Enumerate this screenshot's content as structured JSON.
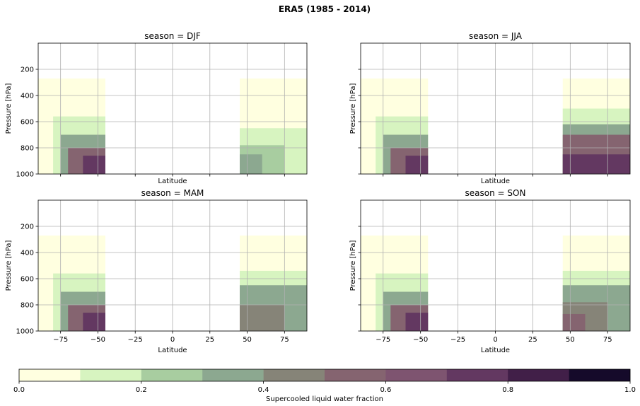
{
  "figure": {
    "suptitle": "ERA5 (1985 - 2014)"
  },
  "colorbar": {
    "label": "Supercooled liquid water fraction",
    "range": [
      0,
      1
    ],
    "ticks": [
      "0.0",
      "0.2",
      "0.4",
      "0.6",
      "0.8",
      "1.0"
    ],
    "levels": [
      0,
      0.1,
      0.2,
      0.3,
      0.4,
      0.5,
      0.6,
      0.7,
      0.8,
      0.9,
      1.0
    ],
    "colors": [
      "#ffffe0",
      "#d7f4c0",
      "#a8cda0",
      "#8ca890",
      "#868478",
      "#856470",
      "#7e5470",
      "#633861",
      "#411f48",
      "#150a2a"
    ]
  },
  "chart_data": [
    {
      "type": "heatmap",
      "title": "season = DJF",
      "xlabel": "Latitude",
      "ylabel": "Pressure [hPa]",
      "xlim": [
        -90,
        90
      ],
      "ylim": [
        1000,
        0
      ],
      "xticks": [
        "-75",
        "-50",
        "-25",
        "0",
        "25",
        "50",
        "75"
      ],
      "yticks": [
        "200",
        "400",
        "600",
        "800",
        "1000"
      ],
      "grid": true,
      "show_xticklabels": false,
      "show_yticklabels": true,
      "regions": [
        {
          "lat": [
            -90,
            -45
          ],
          "pressure": [
            270,
            1000
          ],
          "fraction": 0.05
        },
        {
          "lat": [
            -80,
            -45
          ],
          "pressure": [
            560,
            1000
          ],
          "fraction": 0.15
        },
        {
          "lat": [
            -75,
            -45
          ],
          "pressure": [
            700,
            1000
          ],
          "fraction": 0.35
        },
        {
          "lat": [
            -70,
            -45
          ],
          "pressure": [
            800,
            1000
          ],
          "fraction": 0.55
        },
        {
          "lat": [
            -60,
            -45
          ],
          "pressure": [
            860,
            1000
          ],
          "fraction": 0.75
        },
        {
          "lat": [
            45,
            90
          ],
          "pressure": [
            270,
            1000
          ],
          "fraction": 0.05
        },
        {
          "lat": [
            45,
            90
          ],
          "pressure": [
            650,
            1000
          ],
          "fraction": 0.15
        },
        {
          "lat": [
            45,
            75
          ],
          "pressure": [
            780,
            1000
          ],
          "fraction": 0.25
        },
        {
          "lat": [
            45,
            60
          ],
          "pressure": [
            850,
            1000
          ],
          "fraction": 0.35
        }
      ]
    },
    {
      "type": "heatmap",
      "title": "season = JJA",
      "xlabel": "Latitude",
      "ylabel": "Pressure [hPa]",
      "xlim": [
        -90,
        90
      ],
      "ylim": [
        1000,
        0
      ],
      "xticks": [
        "-75",
        "-50",
        "-25",
        "0",
        "25",
        "50",
        "75"
      ],
      "yticks": [
        "200",
        "400",
        "600",
        "800",
        "1000"
      ],
      "grid": true,
      "show_xticklabels": false,
      "show_yticklabels": false,
      "regions": [
        {
          "lat": [
            -90,
            -45
          ],
          "pressure": [
            270,
            1000
          ],
          "fraction": 0.05
        },
        {
          "lat": [
            -80,
            -45
          ],
          "pressure": [
            560,
            1000
          ],
          "fraction": 0.15
        },
        {
          "lat": [
            -75,
            -45
          ],
          "pressure": [
            700,
            1000
          ],
          "fraction": 0.35
        },
        {
          "lat": [
            -70,
            -45
          ],
          "pressure": [
            800,
            1000
          ],
          "fraction": 0.55
        },
        {
          "lat": [
            -60,
            -45
          ],
          "pressure": [
            860,
            1000
          ],
          "fraction": 0.75
        },
        {
          "lat": [
            45,
            90
          ],
          "pressure": [
            270,
            1000
          ],
          "fraction": 0.05
        },
        {
          "lat": [
            45,
            90
          ],
          "pressure": [
            500,
            1000
          ],
          "fraction": 0.15
        },
        {
          "lat": [
            45,
            90
          ],
          "pressure": [
            620,
            1000
          ],
          "fraction": 0.35
        },
        {
          "lat": [
            45,
            90
          ],
          "pressure": [
            700,
            1000
          ],
          "fraction": 0.55
        },
        {
          "lat": [
            45,
            90
          ],
          "pressure": [
            850,
            1000
          ],
          "fraction": 0.75
        }
      ]
    },
    {
      "type": "heatmap",
      "title": "season = MAM",
      "xlabel": "Latitude",
      "ylabel": "Pressure [hPa]",
      "xlim": [
        -90,
        90
      ],
      "ylim": [
        1000,
        0
      ],
      "xticks": [
        "-75",
        "-50",
        "-25",
        "0",
        "25",
        "50",
        "75"
      ],
      "yticks": [
        "200",
        "400",
        "600",
        "800",
        "1000"
      ],
      "grid": true,
      "show_xticklabels": true,
      "show_yticklabels": true,
      "regions": [
        {
          "lat": [
            -90,
            -45
          ],
          "pressure": [
            270,
            1000
          ],
          "fraction": 0.05
        },
        {
          "lat": [
            -80,
            -45
          ],
          "pressure": [
            560,
            1000
          ],
          "fraction": 0.15
        },
        {
          "lat": [
            -75,
            -45
          ],
          "pressure": [
            700,
            1000
          ],
          "fraction": 0.35
        },
        {
          "lat": [
            -70,
            -45
          ],
          "pressure": [
            800,
            1000
          ],
          "fraction": 0.55
        },
        {
          "lat": [
            -60,
            -45
          ],
          "pressure": [
            860,
            1000
          ],
          "fraction": 0.75
        },
        {
          "lat": [
            45,
            90
          ],
          "pressure": [
            270,
            1000
          ],
          "fraction": 0.05
        },
        {
          "lat": [
            45,
            90
          ],
          "pressure": [
            540,
            1000
          ],
          "fraction": 0.15
        },
        {
          "lat": [
            45,
            90
          ],
          "pressure": [
            650,
            1000
          ],
          "fraction": 0.35
        },
        {
          "lat": [
            45,
            75
          ],
          "pressure": [
            800,
            1000
          ],
          "fraction": 0.45
        }
      ]
    },
    {
      "type": "heatmap",
      "title": "season = SON",
      "xlabel": "Latitude",
      "ylabel": "Pressure [hPa]",
      "xlim": [
        -90,
        90
      ],
      "ylim": [
        1000,
        0
      ],
      "xticks": [
        "-75",
        "-50",
        "-25",
        "0",
        "25",
        "50",
        "75"
      ],
      "yticks": [
        "200",
        "400",
        "600",
        "800",
        "1000"
      ],
      "grid": true,
      "show_xticklabels": true,
      "show_yticklabels": false,
      "regions": [
        {
          "lat": [
            -90,
            -45
          ],
          "pressure": [
            270,
            1000
          ],
          "fraction": 0.05
        },
        {
          "lat": [
            -80,
            -45
          ],
          "pressure": [
            560,
            1000
          ],
          "fraction": 0.15
        },
        {
          "lat": [
            -75,
            -45
          ],
          "pressure": [
            700,
            1000
          ],
          "fraction": 0.35
        },
        {
          "lat": [
            -70,
            -45
          ],
          "pressure": [
            800,
            1000
          ],
          "fraction": 0.55
        },
        {
          "lat": [
            -60,
            -45
          ],
          "pressure": [
            860,
            1000
          ],
          "fraction": 0.75
        },
        {
          "lat": [
            45,
            90
          ],
          "pressure": [
            270,
            1000
          ],
          "fraction": 0.05
        },
        {
          "lat": [
            45,
            90
          ],
          "pressure": [
            540,
            1000
          ],
          "fraction": 0.15
        },
        {
          "lat": [
            45,
            90
          ],
          "pressure": [
            650,
            1000
          ],
          "fraction": 0.35
        },
        {
          "lat": [
            45,
            75
          ],
          "pressure": [
            780,
            1000
          ],
          "fraction": 0.45
        },
        {
          "lat": [
            45,
            60
          ],
          "pressure": [
            870,
            1000
          ],
          "fraction": 0.55
        }
      ]
    }
  ]
}
